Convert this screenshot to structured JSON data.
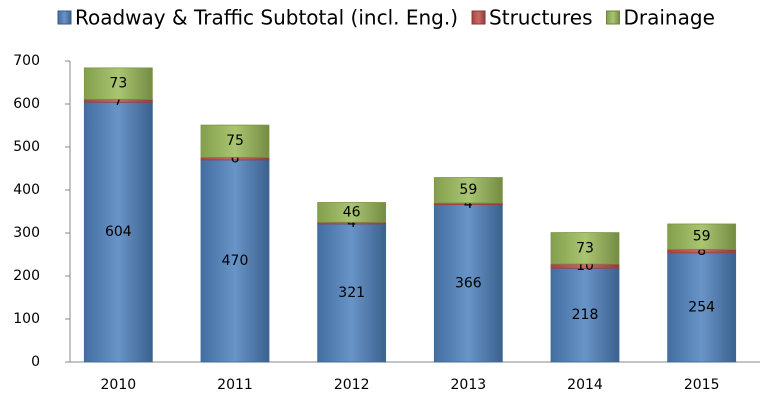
{
  "chart_data": {
    "type": "stacked_bar",
    "categories": [
      "2010",
      "2011",
      "2012",
      "2013",
      "2014",
      "2015"
    ],
    "series": [
      {
        "name": "Roadway & Traffic Subtotal (incl. Eng.)",
        "color": "#4f81bd",
        "values": [
          604,
          470,
          321,
          366,
          218,
          254
        ]
      },
      {
        "name": "Structures",
        "color": "#c0504d",
        "values": [
          7,
          6,
          4,
          4,
          10,
          8
        ]
      },
      {
        "name": "Drainage",
        "color": "#9bbb59",
        "values": [
          73,
          75,
          46,
          59,
          73,
          59
        ]
      }
    ],
    "ylim": [
      0,
      700
    ],
    "yticks": [
      0,
      100,
      200,
      300,
      400,
      500,
      600,
      700
    ],
    "grid": false,
    "legend": "top"
  }
}
